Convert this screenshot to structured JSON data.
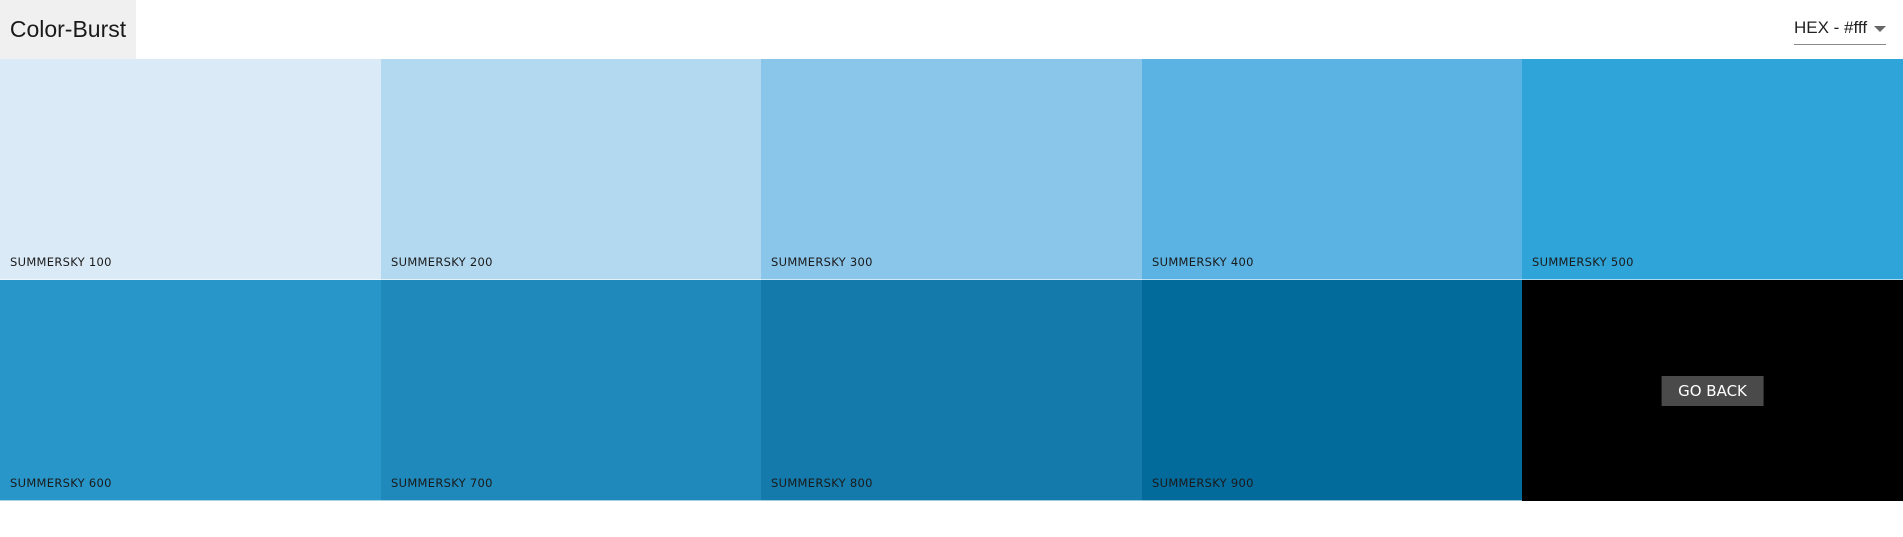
{
  "navbar": {
    "brand": "Color-Burst",
    "format_select": {
      "selected": "HEX - #fff"
    }
  },
  "swatches": [
    {
      "label": "SUMMERSKY 100",
      "color": "#daebf7"
    },
    {
      "label": "SUMMERSKY 200",
      "color": "#b3d9f1"
    },
    {
      "label": "SUMMERSKY 300",
      "color": "#8ac5ea"
    },
    {
      "label": "SUMMERSKY 400",
      "color": "#5ab3e3"
    },
    {
      "label": "SUMMERSKY 500",
      "color": "#2fa4d8"
    },
    {
      "label": "SUMMERSKY 600",
      "color": "#2896c9"
    },
    {
      "label": "SUMMERSKY 700",
      "color": "#1f89bb"
    },
    {
      "label": "SUMMERSKY 800",
      "color": "#137aab"
    },
    {
      "label": "SUMMERSKY 900",
      "color": "#026b9c"
    }
  ],
  "back_button": {
    "label": "GO BACK",
    "background": "#000000"
  }
}
